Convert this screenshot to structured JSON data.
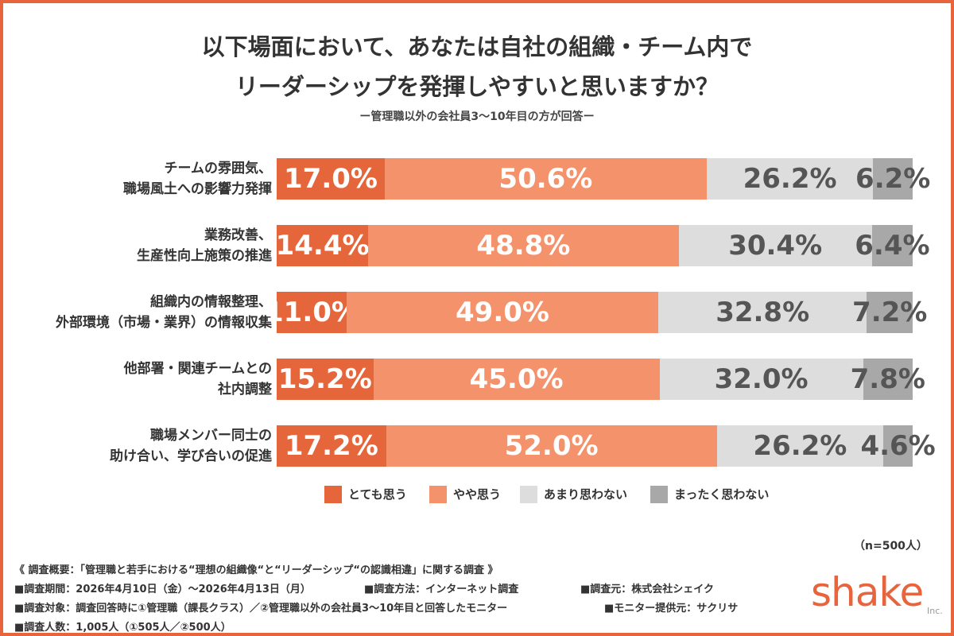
{
  "chart_data": {
    "type": "bar",
    "orientation": "horizontal",
    "stacked": true,
    "title": [
      "以下場面において、あなたは自社の組織・チーム内で",
      "リーダーシップを発揮しやすいと思いますか？"
    ],
    "subtitle": "ー管理職以外の会社員3〜10年目の方が回答ー",
    "categories": [
      "チームの雰囲気、\n職場風土への影響力発揮",
      "業務改善、\n生産性向上施策の推進",
      "組織内の情報整理、\n外部環境（市場・業界）の情報収集",
      "他部署・関連チームとの\n社内調整",
      "職場メンバー同士の\n助け合い、学び合いの促進"
    ],
    "xlim": [
      0,
      100
    ],
    "series": [
      {
        "name": "とても思う",
        "color": "#e4663a",
        "label_color": "#ffffff",
        "values": [
          17.0,
          14.4,
          11.0,
          15.2,
          17.2
        ],
        "value_labels": [
          "17.0%",
          "14.4%",
          "11.0%",
          "15.2%",
          "17.2%"
        ]
      },
      {
        "name": "やや思う",
        "color": "#f4926b",
        "label_color": "#ffffff",
        "values": [
          50.6,
          48.8,
          49.0,
          45.0,
          52.0
        ],
        "value_labels": [
          "50.6%",
          "48.8%",
          "49.0%",
          "45.0%",
          "52.0%"
        ]
      },
      {
        "name": "あまり思わない",
        "color": "#dddddd",
        "label_color": "#555555",
        "values": [
          26.2,
          30.4,
          32.8,
          32.0,
          26.2
        ],
        "value_labels": [
          "26.2%",
          "30.4%",
          "32.8%",
          "32.0%",
          "26.2%"
        ]
      },
      {
        "name": "まったく思わない",
        "color": "#a8a8a8",
        "label_color": "#555555",
        "values": [
          6.2,
          6.4,
          7.2,
          7.8,
          4.6
        ],
        "value_labels": [
          "6.2%",
          "6.4%",
          "7.2%",
          "7.8%",
          "4.6%"
        ]
      }
    ],
    "sample_note": "（n=500人）",
    "notes": [
      [
        "《 調査概要：「管理職と若手における“理想の組織像“と“リーダーシップ“の認識相違」に関する調査 》"
      ],
      [
        "■調査期間：2026年4月10日（金）〜2026年4月13日（月）",
        "■調査方法：インターネット調査",
        "■調査元：株式会社シェイク"
      ],
      [
        "■調査対象：調査回答時に①管理職（課長クラス）／②管理職以外の会社員3〜10年目と回答したモニター",
        "■モニター提供元：サクリサ"
      ],
      [
        "■調査人数：1,005人（①505人／②500人）"
      ]
    ],
    "logo": {
      "name": "shake",
      "suffix": "Inc."
    }
  }
}
